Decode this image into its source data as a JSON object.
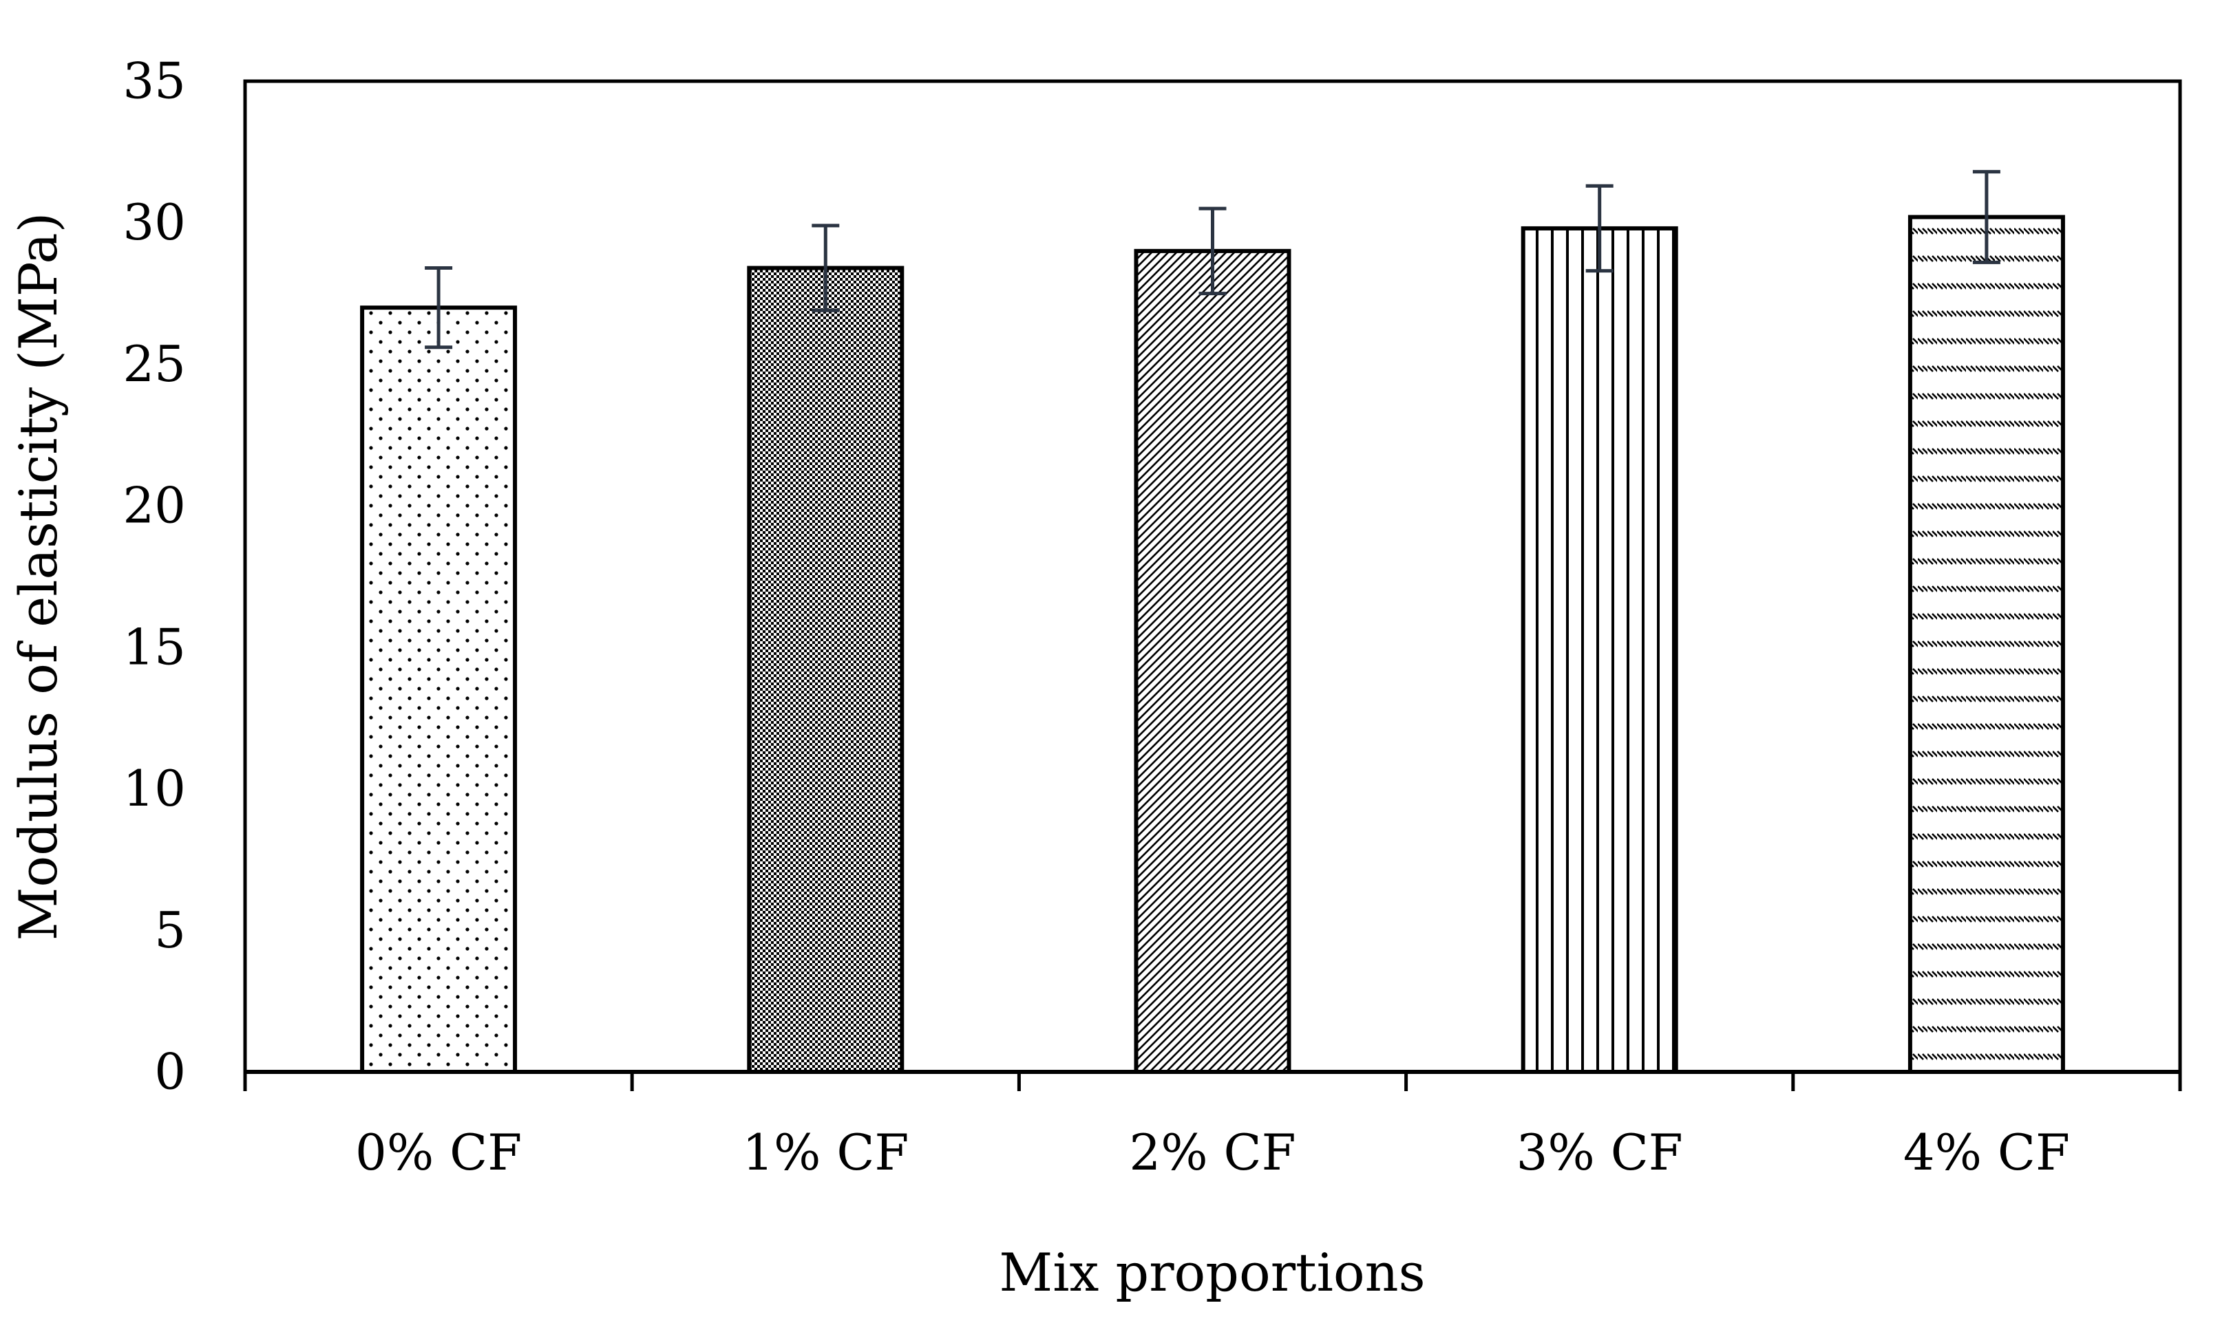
{
  "chart_data": {
    "type": "bar",
    "title": "",
    "xlabel": "Mix proportions",
    "ylabel": "Modulus of elasticity (MPa)",
    "ylim": [
      0,
      35
    ],
    "yticks": [
      0,
      5,
      10,
      15,
      20,
      25,
      30,
      35
    ],
    "categories": [
      "0% CF",
      "1% CF",
      "2% CF",
      "3% CF",
      "4% CF"
    ],
    "values": [
      27.0,
      28.4,
      29.0,
      29.8,
      30.2
    ],
    "error": [
      1.4,
      1.5,
      1.5,
      1.5,
      1.6
    ],
    "patterns": [
      "dots",
      "checker",
      "diagonal",
      "vertical",
      "dash-rows"
    ],
    "grid": false,
    "legend": "none"
  },
  "colors": {
    "bar_fill": "#ffffff",
    "bar_stroke": "#000000",
    "pattern": "#000000",
    "error_bar": "#2b3442"
  }
}
